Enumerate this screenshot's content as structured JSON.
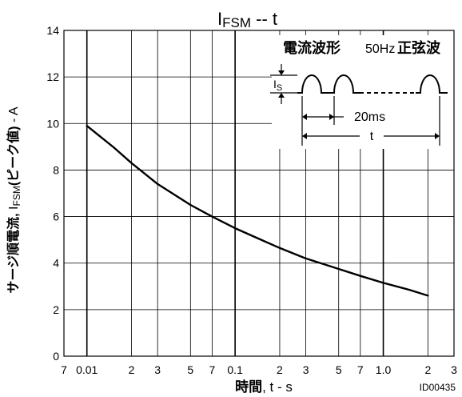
{
  "chart_data": {
    "type": "line",
    "title_main": "I",
    "title_sub": "FSM",
    "title_suffix": " -- t",
    "ylabel_prefix": "サージ順電流,",
    "ylabel_main": "I",
    "ylabel_sub": "FSM",
    "ylabel_tail": "(ピーク値)",
    "ylabel_unit": "- A",
    "xlabel_bold": "時間",
    "xlabel_rest": ", t - s",
    "x_scale": "log",
    "xlim": [
      0.007,
      3
    ],
    "ylim": [
      0,
      14
    ],
    "grid": true,
    "y_ticks": [
      "0",
      "2",
      "4",
      "6",
      "8",
      "10",
      "12",
      "14"
    ],
    "x_ticks": [
      {
        "value": 0.007,
        "label": "7"
      },
      {
        "value": 0.01,
        "label": "0.01"
      },
      {
        "value": 0.02,
        "label": "2"
      },
      {
        "value": 0.03,
        "label": "3"
      },
      {
        "value": 0.05,
        "label": "5"
      },
      {
        "value": 0.07,
        "label": "7"
      },
      {
        "value": 0.1,
        "label": "0.1"
      },
      {
        "value": 0.2,
        "label": "2"
      },
      {
        "value": 0.3,
        "label": "3"
      },
      {
        "value": 0.5,
        "label": "5"
      },
      {
        "value": 0.7,
        "label": "7"
      },
      {
        "value": 1.0,
        "label": "1.0"
      },
      {
        "value": 2,
        "label": "2"
      },
      {
        "value": 3,
        "label": "3"
      }
    ],
    "series": [
      {
        "x": [
          0.01,
          0.015,
          0.02,
          0.03,
          0.05,
          0.07,
          0.1,
          0.15,
          0.2,
          0.3,
          0.5,
          0.7,
          1.0,
          1.5,
          2.0
        ],
        "y": [
          9.9,
          9.0,
          8.3,
          7.4,
          6.5,
          6.0,
          5.5,
          5.0,
          4.65,
          4.2,
          3.75,
          3.45,
          3.15,
          2.85,
          2.6
        ]
      }
    ],
    "inset": {
      "title_cjk": "電流波形",
      "freq": "50Hz",
      "title_cjk2": "正弦波",
      "is_main": "I",
      "is_sub": "S",
      "period_label": "20ms",
      "t_label": "t"
    },
    "figure_id": "ID00435"
  }
}
